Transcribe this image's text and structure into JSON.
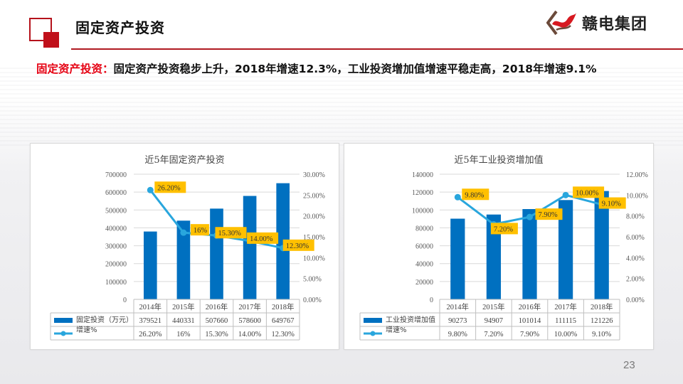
{
  "header": {
    "title": "固定资产投资",
    "brand": "赣电集团",
    "accent_color": "#c0101a"
  },
  "headline": {
    "lead": "固定资产投资：",
    "text": "固定资产投资稳步上升，2018年增速12.3%，工业投资增加值增速平稳走高，2018年增速9.1%"
  },
  "page_number": "23",
  "chart_data": [
    {
      "type": "bar+line",
      "title": "近5年固定资产投资",
      "categories": [
        "2014年",
        "2015年",
        "2016年",
        "2017年",
        "2018年"
      ],
      "series": [
        {
          "name": "固定投资（万元）",
          "type": "bar",
          "axis": "left",
          "color": "#0070c0",
          "values": [
            379521,
            440331,
            507660,
            578600,
            649767
          ],
          "display": [
            "379521",
            "440331",
            "507660",
            "578600",
            "649767"
          ]
        },
        {
          "name": "增速%",
          "type": "line",
          "axis": "right",
          "color": "#29a6dd",
          "values": [
            26.2,
            16,
            15.3,
            14.0,
            12.3
          ],
          "display": [
            "26.20%",
            "16%",
            "15.30%",
            "14.00%",
            "12.30%"
          ]
        }
      ],
      "left_axis": {
        "ylim": [
          0,
          700000
        ],
        "ticks": [
          "0",
          "100000",
          "200000",
          "300000",
          "400000",
          "500000",
          "600000",
          "700000"
        ]
      },
      "right_axis": {
        "ylim": [
          0,
          30
        ],
        "ticks": [
          "0.00%",
          "5.00%",
          "10.00%",
          "15.00%",
          "20.00%",
          "25.00%",
          "30.00%"
        ]
      },
      "data_label_bg": "#ffc000",
      "grid": true,
      "legend": "data-table"
    },
    {
      "type": "bar+line",
      "title": "近5年工业投资增加值",
      "categories": [
        "2014年",
        "2015年",
        "2016年",
        "2017年",
        "2018年"
      ],
      "series": [
        {
          "name": "工业投资增加值",
          "type": "bar",
          "axis": "left",
          "color": "#0070c0",
          "values": [
            90273,
            94907,
            101014,
            111115,
            121226
          ],
          "display": [
            "90273",
            "94907",
            "101014",
            "111115",
            "121226"
          ]
        },
        {
          "name": "增速%",
          "type": "line",
          "axis": "right",
          "color": "#29a6dd",
          "values": [
            9.8,
            7.2,
            7.9,
            10.0,
            9.1
          ],
          "display": [
            "9.80%",
            "7.20%",
            "7.90%",
            "10.00%",
            "9.10%"
          ]
        }
      ],
      "left_axis": {
        "ylim": [
          0,
          140000
        ],
        "ticks": [
          "0",
          "20000",
          "40000",
          "60000",
          "80000",
          "100000",
          "120000",
          "140000"
        ]
      },
      "right_axis": {
        "ylim": [
          0,
          12
        ],
        "ticks": [
          "0.00%",
          "2.00%",
          "4.00%",
          "6.00%",
          "8.00%",
          "10.00%",
          "12.00%"
        ]
      },
      "data_label_bg": "#ffc000",
      "grid": true,
      "legend": "data-table"
    }
  ]
}
